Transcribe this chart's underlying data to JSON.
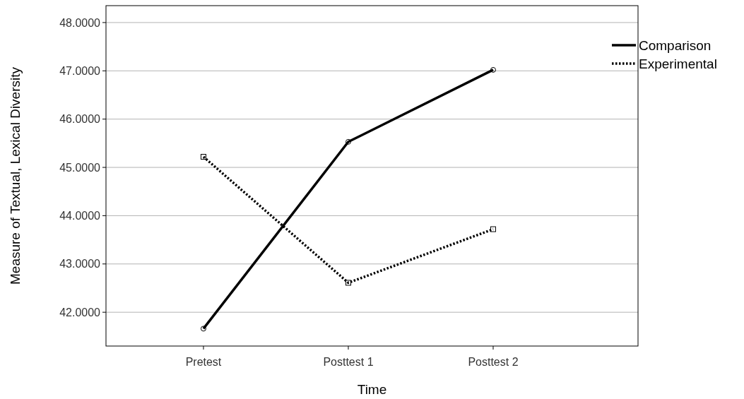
{
  "chart_data": {
    "type": "line",
    "xlabel": "Time",
    "ylabel": "Measure of Textual, Lexical Diversity",
    "categories": [
      "Pretest",
      "Posttest 1",
      "Posttest 2"
    ],
    "series": [
      {
        "name": "Comparison",
        "color": "#000000",
        "values": [
          41.66,
          45.53,
          47.02
        ],
        "marker": "circle",
        "line_style": "solid"
      },
      {
        "name": "Experimental",
        "color": "#000000",
        "values": [
          45.22,
          42.61,
          43.72
        ],
        "marker": "square",
        "line_style": "dotted"
      }
    ],
    "ylim": [
      41.3,
      48.35
    ],
    "yticks": [
      {
        "value": 42,
        "label": "42.0000"
      },
      {
        "value": 43,
        "label": "43.0000"
      },
      {
        "value": 44,
        "label": "44.0000"
      },
      {
        "value": 45,
        "label": "45.0000"
      },
      {
        "value": 46,
        "label": "46.0000"
      },
      {
        "value": 47,
        "label": "47.0000"
      },
      {
        "value": 48,
        "label": "48.0000"
      }
    ],
    "grid": "y",
    "legend": "top right"
  }
}
